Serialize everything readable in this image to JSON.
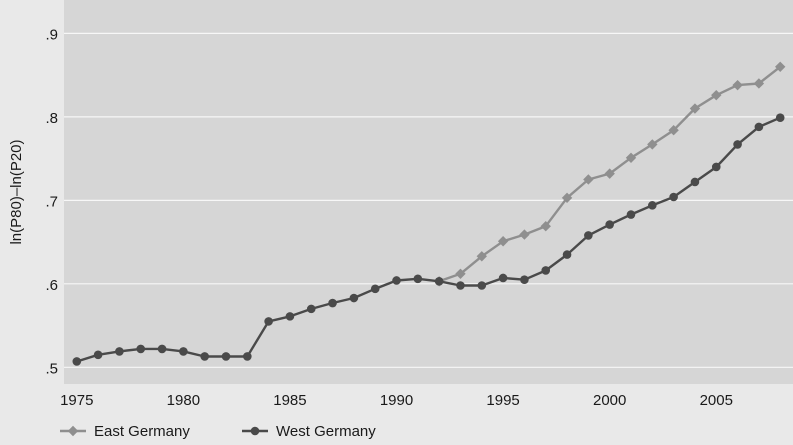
{
  "chart_data": {
    "type": "line",
    "title": "",
    "xlabel": "",
    "ylabel": "ln(P80)–ln(P20)",
    "xlim": [
      1974.4,
      2008.6
    ],
    "ylim": [
      0.48,
      0.94
    ],
    "x_ticks": [
      1975,
      1980,
      1985,
      1990,
      1995,
      2000,
      2005
    ],
    "x_tick_labels": [
      "1975",
      "1980",
      "1985",
      "1990",
      "1995",
      "2000",
      "2005"
    ],
    "y_ticks": [
      0.5,
      0.6,
      0.7,
      0.8,
      0.9
    ],
    "y_tick_labels": [
      ".5",
      ".6",
      ".7",
      ".8",
      ".9"
    ],
    "grid": "horizontal",
    "legend_position": "bottom-left",
    "series": [
      {
        "name": "East Germany",
        "color": "#8f8f8f",
        "marker": "diamond",
        "x": [
          1992,
          1993,
          1994,
          1995,
          1996,
          1997,
          1998,
          1999,
          2000,
          2001,
          2002,
          2003,
          2004,
          2005,
          2006,
          2007,
          2008
        ],
        "values": [
          0.603,
          0.612,
          0.633,
          0.651,
          0.659,
          0.669,
          0.703,
          0.725,
          0.732,
          0.751,
          0.767,
          0.784,
          0.81,
          0.826,
          0.838,
          0.84,
          0.86
        ]
      },
      {
        "name": "West Germany",
        "color": "#4a4a4a",
        "marker": "circle",
        "x": [
          1975,
          1976,
          1977,
          1978,
          1979,
          1980,
          1981,
          1982,
          1983,
          1984,
          1985,
          1986,
          1987,
          1988,
          1989,
          1990,
          1991,
          1992,
          1993,
          1994,
          1995,
          1996,
          1997,
          1998,
          1999,
          2000,
          2001,
          2002,
          2003,
          2004,
          2005,
          2006,
          2007,
          2008
        ],
        "values": [
          0.507,
          0.515,
          0.519,
          0.522,
          0.522,
          0.519,
          0.513,
          0.513,
          0.513,
          0.555,
          0.561,
          0.57,
          0.577,
          0.583,
          0.594,
          0.604,
          0.606,
          0.603,
          0.598,
          0.598,
          0.607,
          0.605,
          0.616,
          0.635,
          0.658,
          0.671,
          0.683,
          0.694,
          0.704,
          0.722,
          0.74,
          0.767,
          0.788,
          0.799
        ]
      }
    ]
  }
}
